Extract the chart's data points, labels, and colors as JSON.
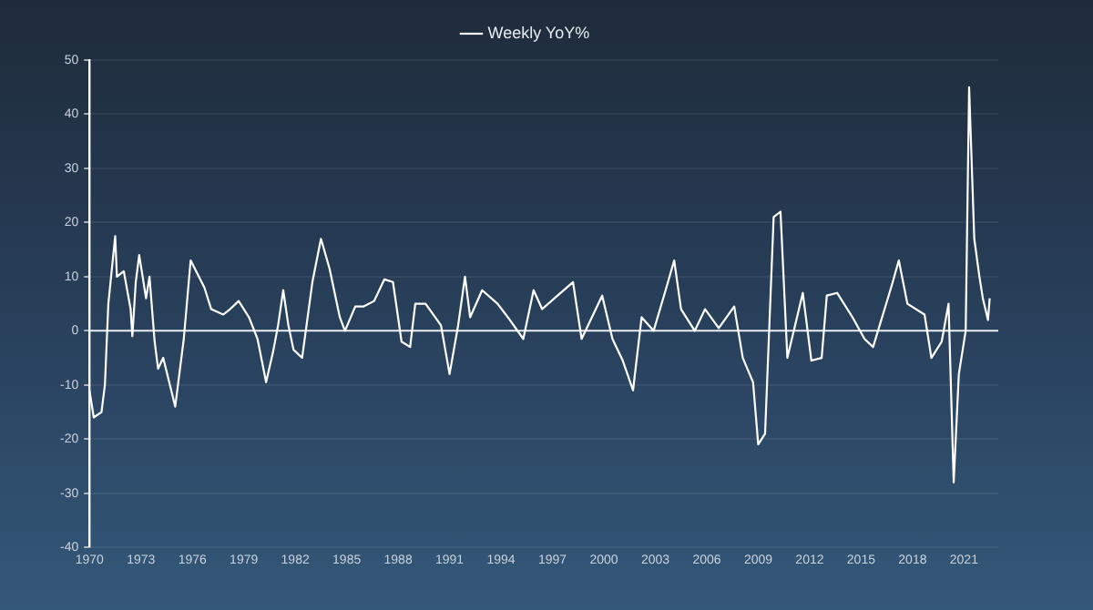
{
  "chart_data": {
    "type": "line",
    "legend": "top",
    "xlim": [
      1970,
      2023
    ],
    "xticks": [
      1970,
      1973,
      1976,
      1979,
      1982,
      1985,
      1988,
      1991,
      1994,
      1997,
      2000,
      2003,
      2006,
      2009,
      2012,
      2015,
      2018,
      2021
    ],
    "ylim": [
      -40,
      50
    ],
    "yticks": [
      -40,
      -30,
      -20,
      -10,
      0,
      10,
      20,
      30,
      40,
      50
    ],
    "grid": "y",
    "marker": "none",
    "line_style": "solid",
    "ref_lines": [
      {
        "axis": "y",
        "value": 0,
        "label": null,
        "color": "#e8edf2"
      }
    ],
    "series": [
      {
        "name": "Weekly YoY%",
        "color": "#ffffff",
        "x": [
          1970.0,
          1970.25,
          1970.7,
          1970.9,
          1971.1,
          1971.5,
          1971.6,
          1972.0,
          1972.4,
          1972.5,
          1972.7,
          1972.9,
          1973.3,
          1973.5,
          1973.8,
          1974.0,
          1974.3,
          1975.0,
          1975.2,
          1975.5,
          1975.9,
          1976.7,
          1977.1,
          1977.8,
          1978.2,
          1978.7,
          1979.3,
          1979.8,
          1980.3,
          1980.7,
          1981.0,
          1981.3,
          1981.6,
          1981.9,
          1982.4,
          1983.0,
          1983.5,
          1984.0,
          1984.6,
          1984.9,
          1985.5,
          1986.0,
          1986.6,
          1987.2,
          1987.7,
          1988.2,
          1988.7,
          1989.0,
          1989.6,
          1990.5,
          1991.0,
          1991.5,
          1991.9,
          1992.2,
          1992.9,
          1993.8,
          1994.4,
          1995.3,
          1995.9,
          1996.4,
          1997.3,
          1998.2,
          1998.7,
          1999.3,
          1999.9,
          2000.5,
          2001.1,
          2001.7,
          2002.2,
          2002.9,
          2003.6,
          2004.1,
          2004.5,
          2005.3,
          2005.9,
          2006.7,
          2007.6,
          2008.1,
          2008.7,
          2009.0,
          2009.4,
          2009.9,
          2010.3,
          2010.7,
          2011.6,
          2012.1,
          2012.7,
          2013.0,
          2013.6,
          2014.5,
          2015.2,
          2015.7,
          2016.8,
          2017.2,
          2017.7,
          2018.7,
          2019.1,
          2019.7,
          2020.1,
          2020.4,
          2020.7,
          2021.1,
          2021.3,
          2021.6,
          2021.9,
          2022.1,
          2022.4,
          2022.5
        ],
        "values": [
          -11,
          -16,
          -15,
          -10,
          5,
          17.5,
          10,
          11,
          4,
          -1,
          9,
          14,
          6,
          10,
          -2,
          -7,
          -5,
          -14,
          -9,
          -1.5,
          13,
          8,
          4,
          3,
          4,
          5.5,
          2.5,
          -1.5,
          -9.5,
          -4,
          1,
          7.5,
          1,
          -3.5,
          -5,
          9,
          17,
          11.5,
          2.5,
          0,
          4.5,
          4.5,
          5.5,
          9.5,
          9,
          -2,
          -3,
          5,
          5,
          1,
          -8,
          1,
          10,
          2.5,
          7.5,
          5,
          2.5,
          -1.5,
          7.5,
          4,
          6.5,
          9,
          -1.5,
          2.5,
          6.5,
          -1.5,
          -5.5,
          -11,
          2.5,
          0,
          7.5,
          13,
          4,
          0,
          4,
          0.5,
          4.5,
          -5,
          -9.5,
          -21,
          -19,
          21,
          22,
          -5,
          7,
          -5.5,
          -5,
          6.5,
          7,
          2.5,
          -1.5,
          -3,
          8.5,
          13,
          5,
          3,
          -5,
          -2,
          5,
          -28,
          -8,
          0,
          45,
          17,
          10,
          6,
          2,
          6
        ]
      }
    ]
  }
}
